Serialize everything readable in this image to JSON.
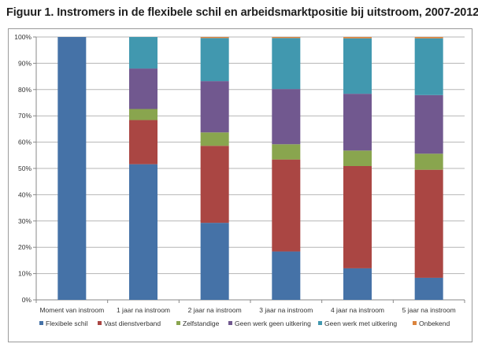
{
  "chart_data": {
    "type": "bar",
    "stacked": "percent",
    "title": "Figuur 1. Instromers in de flexibele schil en arbeidsmarktpositie bij uitstroom, 2007-2012",
    "xlabel": "",
    "ylabel": "",
    "ylim": [
      0,
      100
    ],
    "yticks": [
      "0%",
      "10%",
      "20%",
      "30%",
      "40%",
      "50%",
      "60%",
      "70%",
      "80%",
      "90%",
      "100%"
    ],
    "grid": true,
    "legend_position": "bottom",
    "categories": [
      "Moment van instroom",
      "1 jaar na instroom",
      "2 jaar na instroom",
      "3 jaar na instroom",
      "4 jaar na instroom",
      "5 jaar na instroom"
    ],
    "series": [
      {
        "name": "Flexibele schil",
        "color": "#4572A7",
        "values": [
          100,
          51.6,
          29.3,
          18.4,
          12.0,
          8.4
        ]
      },
      {
        "name": "Vast dienstverband",
        "color": "#AA4643",
        "values": [
          0,
          16.8,
          29.3,
          35.0,
          38.9,
          41.1
        ]
      },
      {
        "name": "Zelfstandige",
        "color": "#89A54E",
        "values": [
          0,
          4.2,
          5.1,
          5.8,
          5.9,
          6.1
        ]
      },
      {
        "name": "Geen werk geen uitkering",
        "color": "#71588F",
        "values": [
          0,
          15.4,
          19.5,
          21.0,
          21.6,
          22.3
        ]
      },
      {
        "name": "Geen werk met uitkering",
        "color": "#4198AF",
        "values": [
          0,
          12.0,
          16.4,
          19.4,
          21.1,
          21.6
        ]
      },
      {
        "name": "Onbekend",
        "color": "#DB843D",
        "values": [
          0,
          0,
          0.4,
          0.4,
          0.5,
          0.5
        ]
      }
    ]
  }
}
